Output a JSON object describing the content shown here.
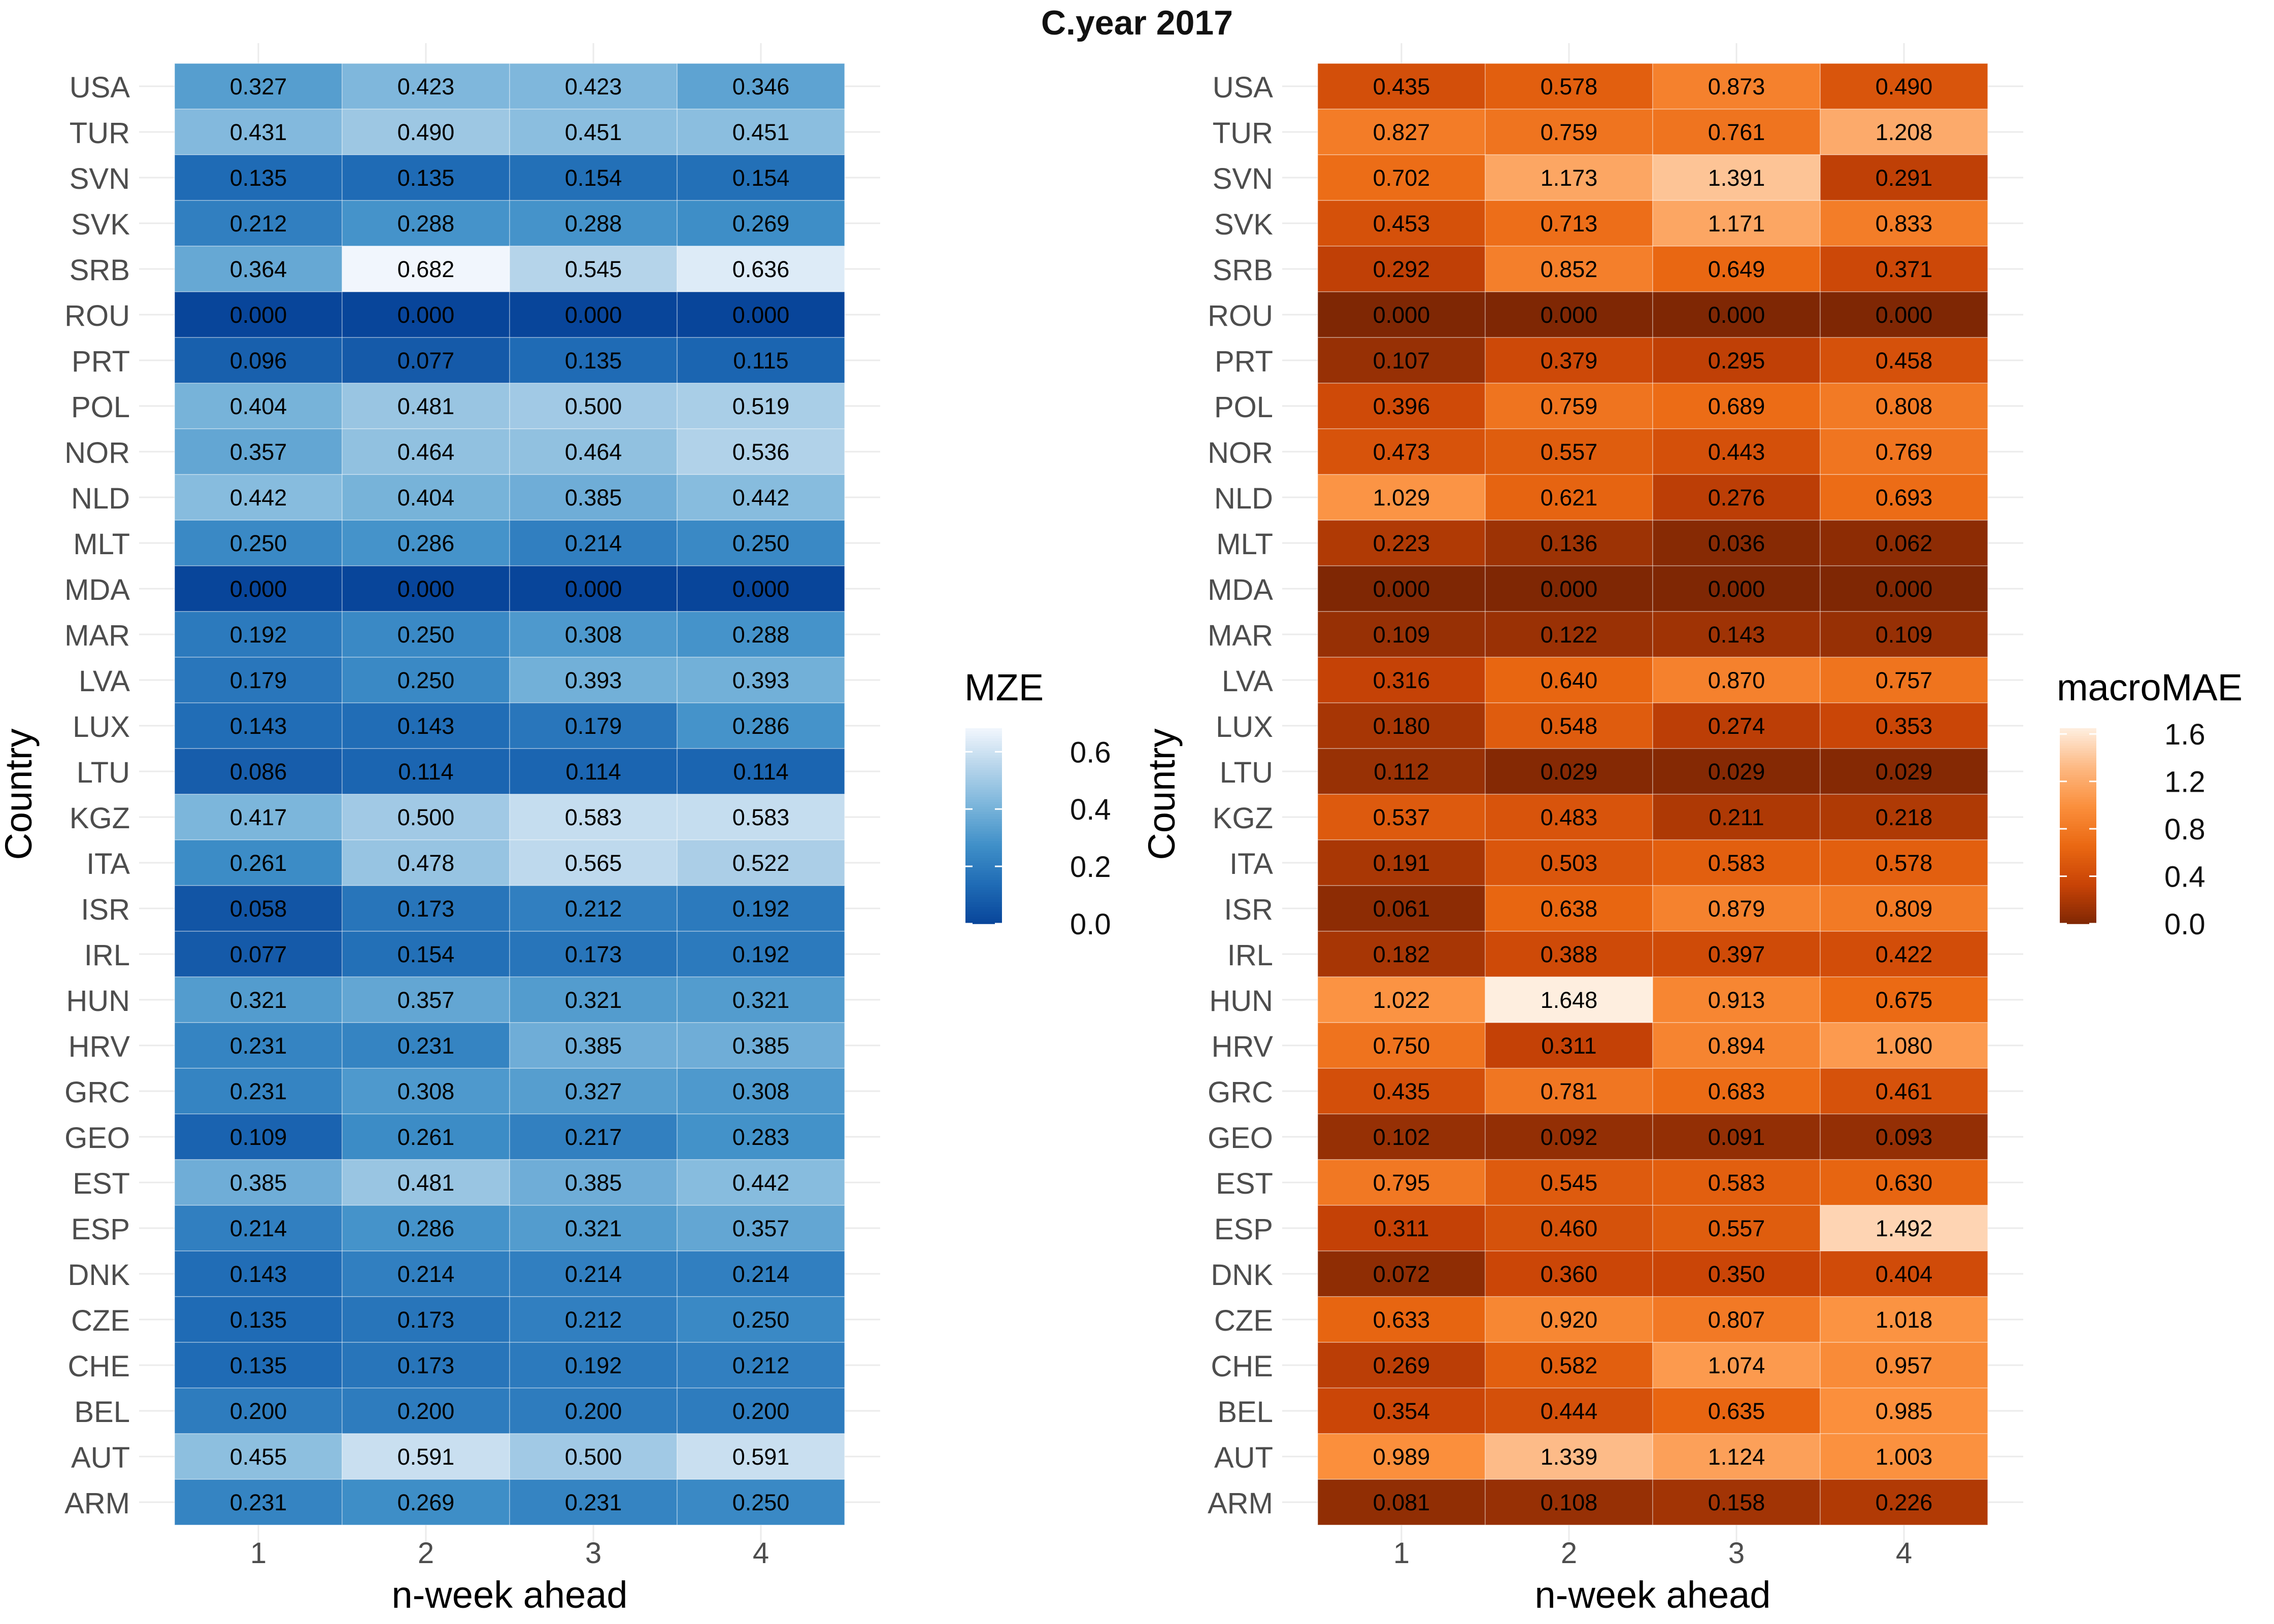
{
  "title": "C.year 2017",
  "chart_data": [
    {
      "type": "heatmap",
      "metric": "MZE",
      "xlabel": "n-week ahead",
      "ylabel": "Country",
      "legend_title": "MZE",
      "legend_ticks": [
        "0.6",
        "0.4",
        "0.2",
        "0.0"
      ],
      "color_range": [
        0.0,
        0.682
      ],
      "palette": "blues-reversed",
      "x": [
        "1",
        "2",
        "3",
        "4"
      ],
      "y": [
        "USA",
        "TUR",
        "SVN",
        "SVK",
        "SRB",
        "ROU",
        "PRT",
        "POL",
        "NOR",
        "NLD",
        "MLT",
        "MDA",
        "MAR",
        "LVA",
        "LUX",
        "LTU",
        "KGZ",
        "ITA",
        "ISR",
        "IRL",
        "HUN",
        "HRV",
        "GRC",
        "GEO",
        "EST",
        "ESP",
        "DNK",
        "CZE",
        "CHE",
        "BEL",
        "AUT",
        "ARM"
      ],
      "values": [
        [
          "0.327",
          "0.423",
          "0.423",
          "0.346"
        ],
        [
          "0.431",
          "0.490",
          "0.451",
          "0.451"
        ],
        [
          "0.135",
          "0.135",
          "0.154",
          "0.154"
        ],
        [
          "0.212",
          "0.288",
          "0.288",
          "0.269"
        ],
        [
          "0.364",
          "0.682",
          "0.545",
          "0.636"
        ],
        [
          "0.000",
          "0.000",
          "0.000",
          "0.000"
        ],
        [
          "0.096",
          "0.077",
          "0.135",
          "0.115"
        ],
        [
          "0.404",
          "0.481",
          "0.500",
          "0.519"
        ],
        [
          "0.357",
          "0.464",
          "0.464",
          "0.536"
        ],
        [
          "0.442",
          "0.404",
          "0.385",
          "0.442"
        ],
        [
          "0.250",
          "0.286",
          "0.214",
          "0.250"
        ],
        [
          "0.000",
          "0.000",
          "0.000",
          "0.000"
        ],
        [
          "0.192",
          "0.250",
          "0.308",
          "0.288"
        ],
        [
          "0.179",
          "0.250",
          "0.393",
          "0.393"
        ],
        [
          "0.143",
          "0.143",
          "0.179",
          "0.286"
        ],
        [
          "0.086",
          "0.114",
          "0.114",
          "0.114"
        ],
        [
          "0.417",
          "0.500",
          "0.583",
          "0.583"
        ],
        [
          "0.261",
          "0.478",
          "0.565",
          "0.522"
        ],
        [
          "0.058",
          "0.173",
          "0.212",
          "0.192"
        ],
        [
          "0.077",
          "0.154",
          "0.173",
          "0.192"
        ],
        [
          "0.321",
          "0.357",
          "0.321",
          "0.321"
        ],
        [
          "0.231",
          "0.231",
          "0.385",
          "0.385"
        ],
        [
          "0.231",
          "0.308",
          "0.327",
          "0.308"
        ],
        [
          "0.109",
          "0.261",
          "0.217",
          "0.283"
        ],
        [
          "0.385",
          "0.481",
          "0.385",
          "0.442"
        ],
        [
          "0.214",
          "0.286",
          "0.321",
          "0.357"
        ],
        [
          "0.143",
          "0.214",
          "0.214",
          "0.214"
        ],
        [
          "0.135",
          "0.173",
          "0.212",
          "0.250"
        ],
        [
          "0.135",
          "0.173",
          "0.192",
          "0.212"
        ],
        [
          "0.200",
          "0.200",
          "0.200",
          "0.200"
        ],
        [
          "0.455",
          "0.591",
          "0.500",
          "0.591"
        ],
        [
          "0.231",
          "0.269",
          "0.231",
          "0.250"
        ]
      ]
    },
    {
      "type": "heatmap",
      "metric": "macroMAE",
      "xlabel": "n-week ahead",
      "ylabel": "Country",
      "legend_title": "macroMAE",
      "legend_ticks": [
        "1.6",
        "1.2",
        "0.8",
        "0.4",
        "0.0"
      ],
      "color_range": [
        0.0,
        1.648
      ],
      "palette": "oranges-reversed",
      "x": [
        "1",
        "2",
        "3",
        "4"
      ],
      "y": [
        "USA",
        "TUR",
        "SVN",
        "SVK",
        "SRB",
        "ROU",
        "PRT",
        "POL",
        "NOR",
        "NLD",
        "MLT",
        "MDA",
        "MAR",
        "LVA",
        "LUX",
        "LTU",
        "KGZ",
        "ITA",
        "ISR",
        "IRL",
        "HUN",
        "HRV",
        "GRC",
        "GEO",
        "EST",
        "ESP",
        "DNK",
        "CZE",
        "CHE",
        "BEL",
        "AUT",
        "ARM"
      ],
      "values": [
        [
          "0.435",
          "0.578",
          "0.873",
          "0.490"
        ],
        [
          "0.827",
          "0.759",
          "0.761",
          "1.208"
        ],
        [
          "0.702",
          "1.173",
          "1.391",
          "0.291"
        ],
        [
          "0.453",
          "0.713",
          "1.171",
          "0.833"
        ],
        [
          "0.292",
          "0.852",
          "0.649",
          "0.371"
        ],
        [
          "0.000",
          "0.000",
          "0.000",
          "0.000"
        ],
        [
          "0.107",
          "0.379",
          "0.295",
          "0.458"
        ],
        [
          "0.396",
          "0.759",
          "0.689",
          "0.808"
        ],
        [
          "0.473",
          "0.557",
          "0.443",
          "0.769"
        ],
        [
          "1.029",
          "0.621",
          "0.276",
          "0.693"
        ],
        [
          "0.223",
          "0.136",
          "0.036",
          "0.062"
        ],
        [
          "0.000",
          "0.000",
          "0.000",
          "0.000"
        ],
        [
          "0.109",
          "0.122",
          "0.143",
          "0.109"
        ],
        [
          "0.316",
          "0.640",
          "0.870",
          "0.757"
        ],
        [
          "0.180",
          "0.548",
          "0.274",
          "0.353"
        ],
        [
          "0.112",
          "0.029",
          "0.029",
          "0.029"
        ],
        [
          "0.537",
          "0.483",
          "0.211",
          "0.218"
        ],
        [
          "0.191",
          "0.503",
          "0.583",
          "0.578"
        ],
        [
          "0.061",
          "0.638",
          "0.879",
          "0.809"
        ],
        [
          "0.182",
          "0.388",
          "0.397",
          "0.422"
        ],
        [
          "1.022",
          "1.648",
          "0.913",
          "0.675"
        ],
        [
          "0.750",
          "0.311",
          "0.894",
          "1.080"
        ],
        [
          "0.435",
          "0.781",
          "0.683",
          "0.461"
        ],
        [
          "0.102",
          "0.092",
          "0.091",
          "0.093"
        ],
        [
          "0.795",
          "0.545",
          "0.583",
          "0.630"
        ],
        [
          "0.311",
          "0.460",
          "0.557",
          "1.492"
        ],
        [
          "0.072",
          "0.360",
          "0.350",
          "0.404"
        ],
        [
          "0.633",
          "0.920",
          "0.807",
          "1.018"
        ],
        [
          "0.269",
          "0.582",
          "1.074",
          "0.957"
        ],
        [
          "0.354",
          "0.444",
          "0.635",
          "0.985"
        ],
        [
          "0.989",
          "1.339",
          "1.124",
          "1.003"
        ],
        [
          "0.081",
          "0.108",
          "0.158",
          "0.226"
        ]
      ]
    }
  ]
}
